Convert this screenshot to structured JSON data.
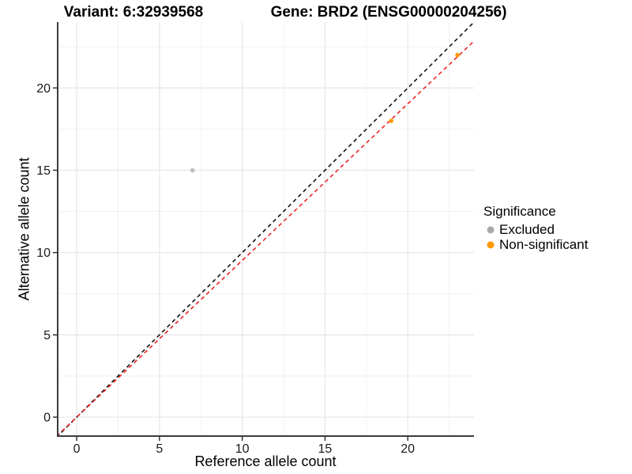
{
  "titles": {
    "variant": "Variant: 6:32939568",
    "gene": "Gene: BRD2 (ENSG00000204256)"
  },
  "legend": {
    "title": "Significance",
    "items": [
      {
        "label": "Excluded",
        "color": "#a9a9a9"
      },
      {
        "label": "Non-significant",
        "color": "#ff9800"
      }
    ]
  },
  "chart_data": {
    "type": "scatter",
    "title": "Variant: 6:32939568   Gene: BRD2 (ENSG00000204256)",
    "xlabel": "Reference allele count",
    "ylabel": "Alternative allele count",
    "xlim": [
      -1.15,
      24.0
    ],
    "ylim": [
      -1.15,
      24.0
    ],
    "x_ticks": [
      0,
      5,
      10,
      15,
      20
    ],
    "y_ticks": [
      0,
      5,
      10,
      15,
      20
    ],
    "x_minor_ticks": [
      2.5,
      7.5,
      12.5,
      17.5,
      22.5
    ],
    "y_minor_ticks": [
      2.5,
      7.5,
      12.5,
      17.5,
      22.5
    ],
    "grid": true,
    "legend_position": "right",
    "series": [
      {
        "name": "Excluded",
        "color": "#bdbdbd",
        "points": [
          [
            7,
            15
          ]
        ]
      },
      {
        "name": "Non-significant",
        "color": "#ff9800",
        "points": [
          [
            19,
            18
          ],
          [
            23,
            22
          ]
        ]
      }
    ],
    "lines": [
      {
        "name": "identity-line",
        "slope": 1.0,
        "intercept": 0,
        "color": "#111111",
        "dash": "5,4"
      },
      {
        "name": "fit-line",
        "slope": 0.952,
        "intercept": 0,
        "color": "#ee2222",
        "dash": "5,4"
      }
    ],
    "style": {
      "grid_major_color": "#e6e6e6",
      "grid_minor_color": "#f1f1f1",
      "axis_line_color": "#3c3c3c",
      "tick_color": "#333333",
      "tick_label_color": "#1a1a1a",
      "point_radius": 2.8
    }
  }
}
